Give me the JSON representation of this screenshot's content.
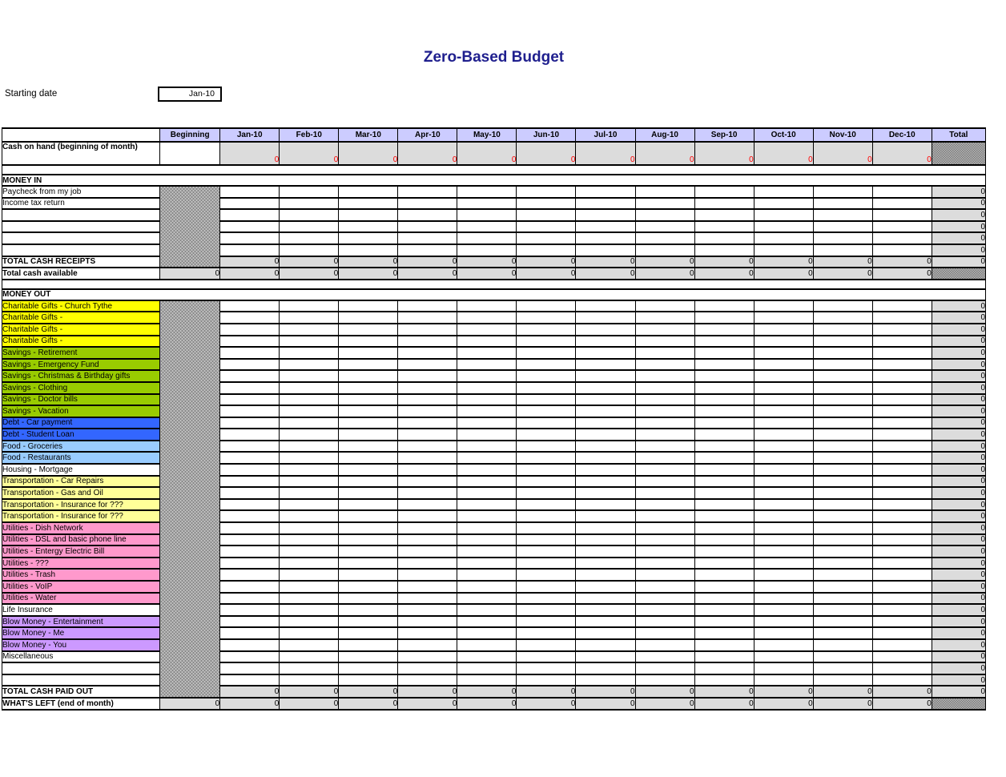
{
  "page": {
    "title": "Zero-Based Budget",
    "title_color": "#1f1f8e"
  },
  "starting_date": {
    "label": "Starting date",
    "value": "Jan-10"
  },
  "colors": {
    "header_band": "#ccccff",
    "filled_cell_gray": "#dcdcdc",
    "negative_red": "#ff0000",
    "charitable_yellow": "#ffff00",
    "savings_green": "#99cc00",
    "debt_blue": "#3366ff",
    "food_lightblue": "#99ccff",
    "transportation_paleyellow": "#ffff99",
    "utilities_pink": "#ff99cc",
    "blowmoney_purple": "#cc99ff"
  },
  "table": {
    "zero": "0",
    "columns": [
      "Beginning",
      "Jan-10",
      "Feb-10",
      "Mar-10",
      "Apr-10",
      "May-10",
      "Jun-10",
      "Jul-10",
      "Aug-10",
      "Sep-10",
      "Oct-10",
      "Nov-10",
      "Dec-10",
      "Total"
    ],
    "cash_on_hand": {
      "label": "Cash on hand (beginning of month)",
      "month_value": "0"
    },
    "money_in": {
      "header": "MONEY IN",
      "rows": [
        {
          "label": "Paycheck from my job",
          "color": null,
          "total": "0"
        },
        {
          "label": "Income tax return",
          "color": null,
          "total": "0"
        },
        {
          "label": "",
          "color": null,
          "total": "0"
        },
        {
          "label": "",
          "color": null,
          "total": "0"
        },
        {
          "label": "",
          "color": null,
          "total": "0"
        },
        {
          "label": "",
          "color": null,
          "total": "0"
        }
      ],
      "total_row": {
        "label": "TOTAL CASH RECEIPTS",
        "value": "0"
      },
      "available_row": {
        "label": "Total cash available",
        "value": "0"
      }
    },
    "money_out": {
      "header": "MONEY OUT",
      "rows": [
        {
          "label": "Charitable Gifts - Church Tythe",
          "color": "#ffff00",
          "total": "0"
        },
        {
          "label": "Charitable Gifts - ",
          "color": "#ffff00",
          "total": "0"
        },
        {
          "label": "Charitable Gifts - ",
          "color": "#ffff00",
          "total": "0"
        },
        {
          "label": "Charitable Gifts - ",
          "color": "#ffff00",
          "total": "0"
        },
        {
          "label": "Savings - Retirement",
          "color": "#99cc00",
          "total": "0"
        },
        {
          "label": "Savings - Emergency Fund",
          "color": "#99cc00",
          "total": "0"
        },
        {
          "label": "Savings - Christmas & Birthday gifts",
          "color": "#99cc00",
          "total": "0"
        },
        {
          "label": "Savings - Clothing",
          "color": "#99cc00",
          "total": "0"
        },
        {
          "label": "Savings - Doctor bills",
          "color": "#99cc00",
          "total": "0"
        },
        {
          "label": "Savings - Vacation",
          "color": "#99cc00",
          "total": "0"
        },
        {
          "label": "Debt - Car payment",
          "color": "#3366ff",
          "total": "0"
        },
        {
          "label": "Debt - Student Loan",
          "color": "#3366ff",
          "total": "0"
        },
        {
          "label": "Food - Groceries",
          "color": "#99ccff",
          "total": "0"
        },
        {
          "label": "Food - Restaurants",
          "color": "#99ccff",
          "total": "0"
        },
        {
          "label": "Housing - Mortgage",
          "color": null,
          "total": "0"
        },
        {
          "label": "Transportation - Car Repairs",
          "color": "#ffff99",
          "total": "0"
        },
        {
          "label": "Transportation - Gas and Oil",
          "color": "#ffff99",
          "total": "0"
        },
        {
          "label": "Transportation - Insurance for ???",
          "color": "#ffff99",
          "total": "0"
        },
        {
          "label": "Transportation - Insurance for ???",
          "color": "#ffff99",
          "total": "0"
        },
        {
          "label": "Utilities - Dish Network",
          "color": "#ff99cc",
          "total": "0"
        },
        {
          "label": "Utilities - DSL and basic phone line",
          "color": "#ff99cc",
          "total": "0"
        },
        {
          "label": "Utilities - Entergy Electric Bill",
          "color": "#ff99cc",
          "total": "0"
        },
        {
          "label": "Utilities - ???",
          "color": "#ff99cc",
          "total": "0"
        },
        {
          "label": "Utilities - Trash",
          "color": "#ff99cc",
          "total": "0"
        },
        {
          "label": "Utilities - VoIP",
          "color": "#ff99cc",
          "total": "0"
        },
        {
          "label": "Utilities - Water",
          "color": "#ff99cc",
          "total": "0"
        },
        {
          "label": "Life Insurance",
          "color": null,
          "total": "0"
        },
        {
          "label": "Blow Money - Entertainment",
          "color": "#cc99ff",
          "total": "0"
        },
        {
          "label": "Blow Money - Me",
          "color": "#cc99ff",
          "total": "0"
        },
        {
          "label": "Blow Money - You",
          "color": "#cc99ff",
          "total": "0"
        },
        {
          "label": "Miscellaneous",
          "color": null,
          "total": "0"
        },
        {
          "label": "",
          "color": null,
          "total": "0"
        },
        {
          "label": "",
          "color": null,
          "total": "0"
        }
      ],
      "total_row": {
        "label": "TOTAL CASH PAID OUT",
        "value": "0"
      },
      "whats_left_row": {
        "label": "WHAT'S LEFT (end of month)",
        "value": "0"
      }
    }
  }
}
